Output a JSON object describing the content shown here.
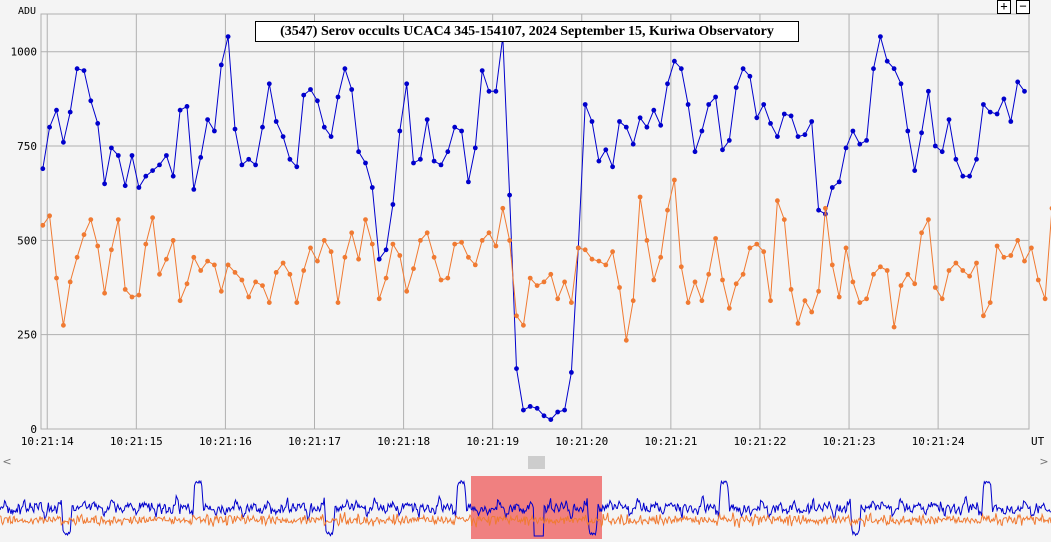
{
  "chart_data": {
    "type": "line",
    "title": "(3547) Serov occults UCAC4 345-154107, 2024 September 15, Kuriwa Observatory",
    "ylabel": "ADU",
    "xlabel": "UT",
    "xlim": [
      13.93,
      25.02
    ],
    "ylim": [
      0,
      1100
    ],
    "y_ticks": [
      0,
      250,
      500,
      750,
      1000
    ],
    "x_tick_labels": [
      "10:21:14",
      "10:21:15",
      "10:21:16",
      "10:21:17",
      "10:21:18",
      "10:21:19",
      "10:21:20",
      "10:21:21",
      "10:21:22",
      "10:21:23",
      "10:21:24"
    ],
    "x_tick_values": [
      14,
      15,
      16,
      17,
      18,
      19,
      20,
      21,
      22,
      23,
      24
    ],
    "grid": true,
    "series": [
      {
        "color": "#0000cc",
        "values": [
          690,
          800,
          845,
          760,
          840,
          955,
          950,
          870,
          810,
          650,
          745,
          725,
          645,
          725,
          640,
          670,
          685,
          700,
          725,
          670,
          845,
          855,
          635,
          720,
          820,
          790,
          965,
          1040,
          795,
          700,
          715,
          700,
          800,
          915,
          815,
          775,
          715,
          695,
          885,
          900,
          870,
          800,
          775,
          880,
          955,
          900,
          735,
          705,
          640,
          450,
          475,
          595,
          790,
          915,
          705,
          715,
          820,
          710,
          700,
          735,
          800,
          790,
          655,
          745,
          950,
          895,
          895,
          1040,
          620,
          160,
          50,
          60,
          55,
          35,
          25,
          45,
          50,
          150,
          480,
          860,
          815,
          710,
          740,
          695,
          815,
          800,
          755,
          825,
          800,
          845,
          805,
          915,
          975,
          955,
          860,
          735,
          790,
          860,
          880,
          740,
          765,
          905,
          955,
          935,
          825,
          860,
          810,
          775,
          835,
          830,
          775,
          780,
          815,
          580,
          570,
          640,
          655,
          745,
          790,
          755,
          765,
          955,
          1040,
          975,
          955,
          915,
          790,
          685,
          785,
          895,
          750,
          735,
          820,
          715,
          670,
          670,
          715,
          860,
          840,
          835,
          875,
          815,
          920,
          895
        ],
        "name": ""
      },
      {
        "color": "#f07a32",
        "values": [
          540,
          565,
          400,
          275,
          390,
          455,
          515,
          555,
          485,
          360,
          475,
          555,
          370,
          350,
          355,
          490,
          560,
          410,
          450,
          500,
          340,
          385,
          455,
          420,
          445,
          435,
          365,
          435,
          415,
          395,
          350,
          390,
          380,
          335,
          415,
          440,
          410,
          335,
          420,
          480,
          445,
          500,
          470,
          335,
          455,
          520,
          450,
          555,
          490,
          345,
          400,
          490,
          460,
          365,
          425,
          500,
          520,
          455,
          395,
          400,
          490,
          495,
          455,
          435,
          500,
          520,
          485,
          585,
          500,
          300,
          275,
          400,
          380,
          390,
          410,
          345,
          390,
          335,
          480,
          475,
          450,
          445,
          435,
          470,
          375,
          235,
          340,
          615,
          500,
          395,
          455,
          580,
          660,
          430,
          335,
          390,
          340,
          410,
          505,
          395,
          320,
          385,
          410,
          480,
          490,
          470,
          340,
          605,
          555,
          370,
          280,
          340,
          310,
          365,
          585,
          435,
          350,
          480,
          390,
          335,
          345,
          410,
          430,
          420,
          270,
          380,
          410,
          385,
          520,
          555,
          375,
          345,
          420,
          440,
          420,
          405,
          440,
          300,
          335,
          485,
          455,
          460,
          500,
          445,
          480,
          395,
          345,
          585
        ],
        "name": ""
      }
    ]
  },
  "controls": {
    "zoom_in": "+",
    "zoom_out": "−",
    "scroll_left": "<",
    "scroll_right": ">"
  }
}
